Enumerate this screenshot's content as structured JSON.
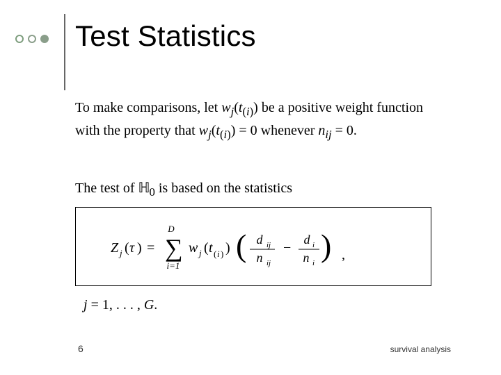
{
  "bullets": {
    "color1_border": "#7e9e7e",
    "color2_border": "#8a9e8a",
    "color3_fill": "#8a9e8a"
  },
  "vline_color": "#666666",
  "title": "Test Statistics",
  "title_fontsize": 42,
  "body_fontsize": 20,
  "body1_html": "To make comparisons, let <span class='math'>w<sub>j</sub></span>(<span class='math'>t</span><sub>(<span class='math'>i</span>)</sub>) be a positive weight function with the property that <span class='math'>w<sub>j</sub></span>(<span class='math'>t</span><sub>(<span class='math'>i</span>)</sub>) = 0 whenever <span class='math'>n<sub>ij</sub></span> = 0.",
  "body2_html": "The test of <span class='bb'>&#8461;</span><sub>0</sub> is based on the statistics",
  "formula": {
    "lhs": "Z_j(\\tau)",
    "upper": "D",
    "lower": "i=1",
    "weight": "w_j(t_{(i)})",
    "frac1_top": "d_{ij}",
    "frac1_bot": "n_{ij}",
    "frac2_top": "d_i",
    "frac2_bot": "n_i",
    "box_border_color": "#000000",
    "font_family": "Times New Roman"
  },
  "body3_html": "<span class='math'>j</span> = 1, . . . , <span class='math'>G</span>.",
  "page_number": "6",
  "footer": "survival analysis",
  "background_color": "#ffffff",
  "text_color": "#000000"
}
